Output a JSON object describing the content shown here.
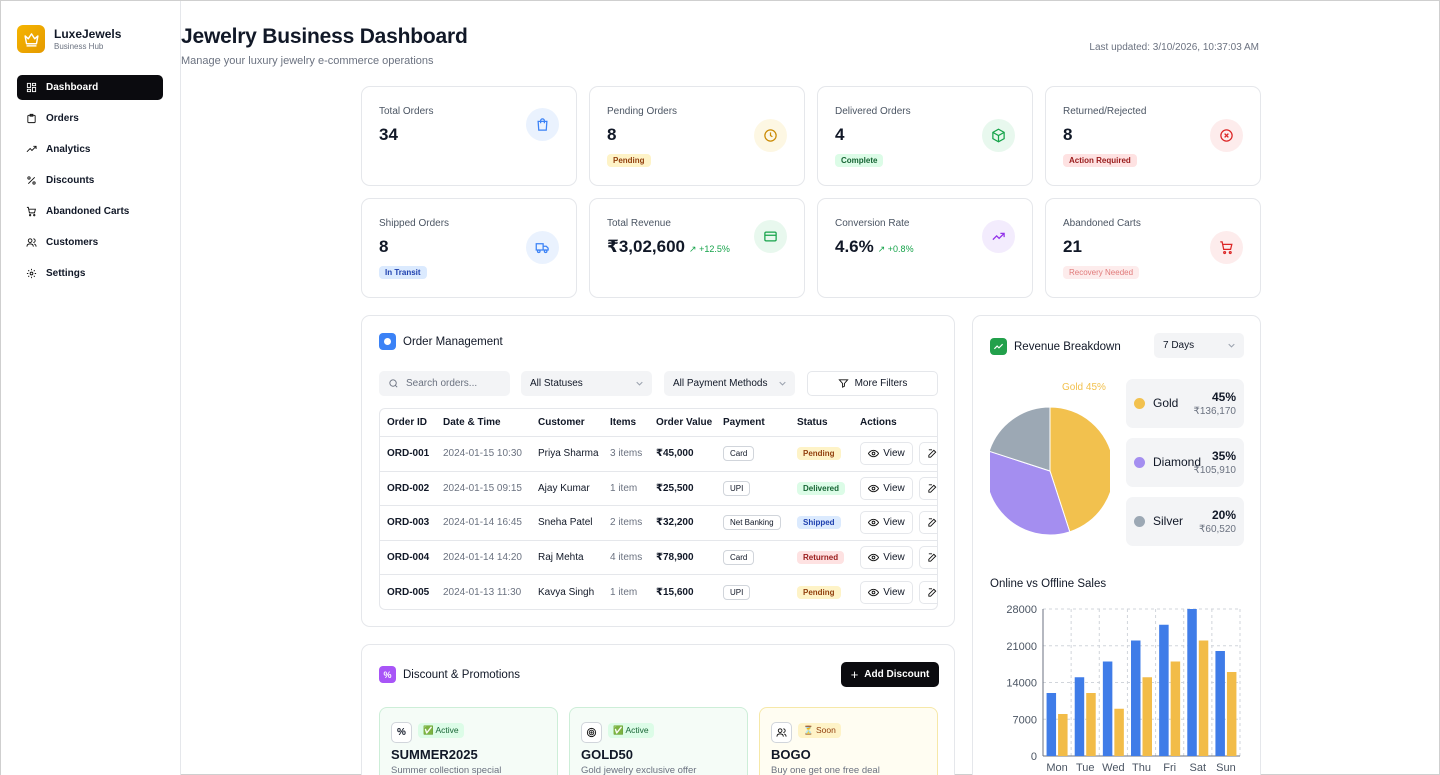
{
  "brand": {
    "name": "LuxeJewels",
    "subtitle": "Business Hub"
  },
  "nav": [
    {
      "label": "Dashboard",
      "icon": "dashboard-icon",
      "active": true
    },
    {
      "label": "Orders",
      "icon": "orders-icon"
    },
    {
      "label": "Analytics",
      "icon": "analytics-icon"
    },
    {
      "label": "Discounts",
      "icon": "percent-icon"
    },
    {
      "label": "Abandoned Carts",
      "icon": "cart-icon"
    },
    {
      "label": "Customers",
      "icon": "users-icon"
    },
    {
      "label": "Settings",
      "icon": "gear-icon"
    }
  ],
  "header": {
    "title": "Jewelry Business Dashboard",
    "subtitle": "Manage your luxury jewelry e-commerce operations",
    "updated": "Last updated: 3/10/2026, 10:37:03 AM"
  },
  "stats": [
    {
      "label": "Total Orders",
      "value": "34",
      "icon": "shopping-bag-icon",
      "color": "#3b82f6"
    },
    {
      "label": "Pending Orders",
      "value": "8",
      "badge": "Pending",
      "icon": "clock-icon",
      "color": "#ca8a04"
    },
    {
      "label": "Delivered Orders",
      "value": "4",
      "badge": "Complete",
      "icon": "package-icon",
      "color": "#16a34a"
    },
    {
      "label": "Returned/Rejected",
      "value": "8",
      "badge": "Action Required",
      "icon": "x-circle-icon",
      "color": "#dc2626"
    },
    {
      "label": "Shipped Orders",
      "value": "8",
      "badge": "In Transit",
      "icon": "truck-icon",
      "color": "#3b82f6"
    },
    {
      "label": "Total Revenue",
      "value": "₹3,02,600",
      "trend": "+12.5%",
      "icon": "credit-card-icon",
      "color": "#16a34a"
    },
    {
      "label": "Conversion Rate",
      "value": "4.6%",
      "trend": "+0.8%",
      "icon": "trending-up-icon",
      "color": "#9333ea"
    },
    {
      "label": "Abandoned Carts",
      "value": "21",
      "badge": "Recovery Needed",
      "icon": "cart-icon",
      "color": "#dc2626"
    }
  ],
  "orders": {
    "title": "Order Management",
    "search_placeholder": "Search orders...",
    "status_filter": "All Statuses",
    "payment_filter": "All Payment Methods",
    "more_filters": "More Filters",
    "columns": [
      "Order ID",
      "Date & Time",
      "Customer",
      "Items",
      "Order Value",
      "Payment",
      "Status",
      "Actions"
    ],
    "view_label": "View",
    "rows": [
      {
        "id": "ORD-001",
        "date": "2024-01-15 10:30",
        "customer": "Priya Sharma",
        "items": "3 items",
        "value": "₹45,000",
        "payment": "Card",
        "status": "Pending"
      },
      {
        "id": "ORD-002",
        "date": "2024-01-15 09:15",
        "customer": "Ajay Kumar",
        "items": "1 item",
        "value": "₹25,500",
        "payment": "UPI",
        "status": "Delivered"
      },
      {
        "id": "ORD-003",
        "date": "2024-01-14 16:45",
        "customer": "Sneha Patel",
        "items": "2 items",
        "value": "₹32,200",
        "payment": "Net Banking",
        "status": "Shipped"
      },
      {
        "id": "ORD-004",
        "date": "2024-01-14 14:20",
        "customer": "Raj Mehta",
        "items": "4 items",
        "value": "₹78,900",
        "payment": "Card",
        "status": "Returned"
      },
      {
        "id": "ORD-005",
        "date": "2024-01-13 11:30",
        "customer": "Kavya Singh",
        "items": "1 item",
        "value": "₹15,600",
        "payment": "UPI",
        "status": "Pending"
      }
    ]
  },
  "promotions": {
    "title": "Discount & Promotions",
    "add_label": "Add Discount",
    "items": [
      {
        "code": "SUMMER2025",
        "desc": "Summer collection special",
        "badge": "✅ Active",
        "icon": "percent-icon"
      },
      {
        "code": "GOLD50",
        "desc": "Gold jewelry exclusive offer",
        "badge": "✅ Active",
        "icon": "target-icon"
      },
      {
        "code": "BOGO",
        "desc": "Buy one get one free deal",
        "badge": "⏳ Soon",
        "icon": "users-icon"
      }
    ]
  },
  "revenue": {
    "title": "Revenue Breakdown",
    "period": "7 Days",
    "pie_label": "Gold 45%",
    "items": [
      {
        "name": "Gold",
        "pct": "45%",
        "amount": "₹136,170",
        "color": "#f2c14e"
      },
      {
        "name": "Diamond",
        "pct": "35%",
        "amount": "₹105,910",
        "color": "#a48ef0"
      },
      {
        "name": "Silver",
        "pct": "20%",
        "amount": "₹60,520",
        "color": "#9ca8b4"
      }
    ]
  },
  "chart_data": [
    {
      "type": "pie",
      "title": "Revenue Breakdown",
      "categories": [
        "Gold",
        "Diamond",
        "Silver"
      ],
      "values": [
        45,
        35,
        20
      ],
      "colors": [
        "#f2c14e",
        "#a48ef0",
        "#9ca8b4"
      ],
      "annotations": [
        "Gold 45%"
      ]
    },
    {
      "type": "bar",
      "title": "Online vs Offline Sales",
      "categories": [
        "Mon",
        "Tue",
        "Wed",
        "Thu",
        "Fri",
        "Sat",
        "Sun"
      ],
      "series": [
        {
          "values": [
            12000,
            15000,
            18000,
            22000,
            25000,
            28000,
            20000
          ],
          "color": "#3f7ce8"
        },
        {
          "values": [
            8000,
            12000,
            9000,
            15000,
            18000,
            22000,
            16000
          ],
          "color": "#f2bc48"
        }
      ],
      "yticks": [
        "0",
        "7000",
        "14000",
        "21000",
        "28000"
      ],
      "ylim": [
        0,
        28000
      ],
      "grid": true
    }
  ]
}
